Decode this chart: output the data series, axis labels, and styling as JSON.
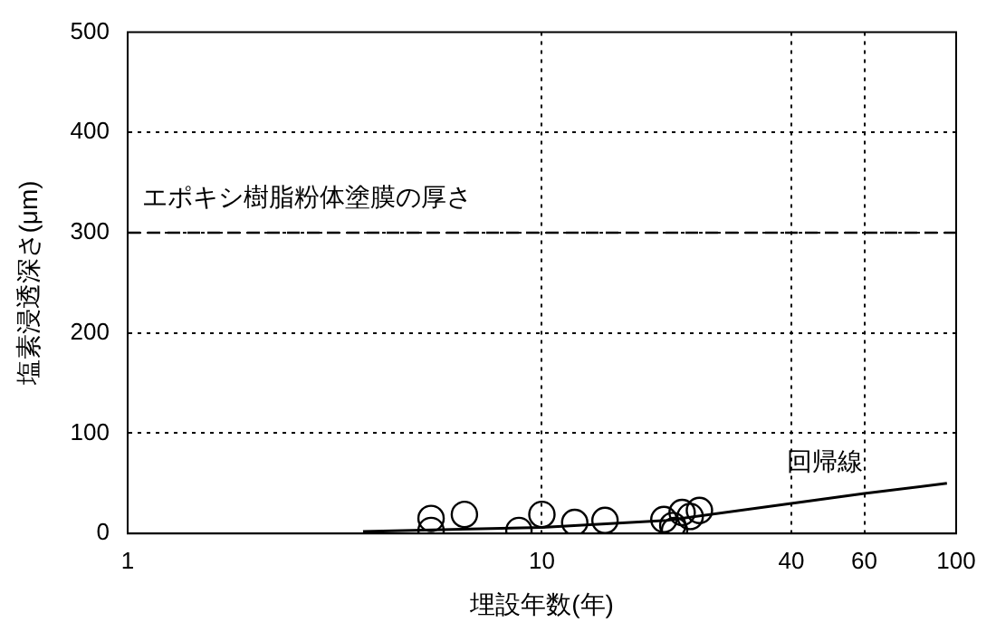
{
  "chart_data": {
    "type": "scatter",
    "xlabel": "埋設年数(年)",
    "ylabel": "塩素浸透深さ(μm)",
    "log": "x",
    "xlim": [
      1,
      100
    ],
    "xticks": [
      1,
      10,
      40,
      60,
      100
    ],
    "ylim": [
      0,
      500
    ],
    "yticks": [
      0,
      100,
      200,
      300,
      400,
      500
    ],
    "grid": true,
    "marker": "circle",
    "series": [
      {
        "type": "scatter",
        "color": "#000000",
        "x": [
          5.4,
          5.4,
          6.5,
          8.8,
          10,
          12,
          14.2,
          19.7,
          20.7,
          20.9,
          21.8,
          22.8,
          24
        ],
        "values": [
          15,
          3,
          19,
          3,
          19,
          11,
          13,
          14,
          8,
          3,
          21,
          17,
          23
        ]
      },
      {
        "type": "line",
        "name": "回帰線",
        "color": "#000000",
        "marker": "none",
        "line_style": "solid",
        "x": [
          3.7,
          10,
          20,
          40,
          60,
          95
        ],
        "values": [
          2,
          6,
          13,
          30,
          40,
          50
        ]
      }
    ],
    "ref_lines": [
      {
        "axis": "y",
        "value": 300,
        "label": "エポキシ樹脂粉体塗膜の厚さ",
        "color": "#000000",
        "line_style": "dashed"
      }
    ]
  }
}
